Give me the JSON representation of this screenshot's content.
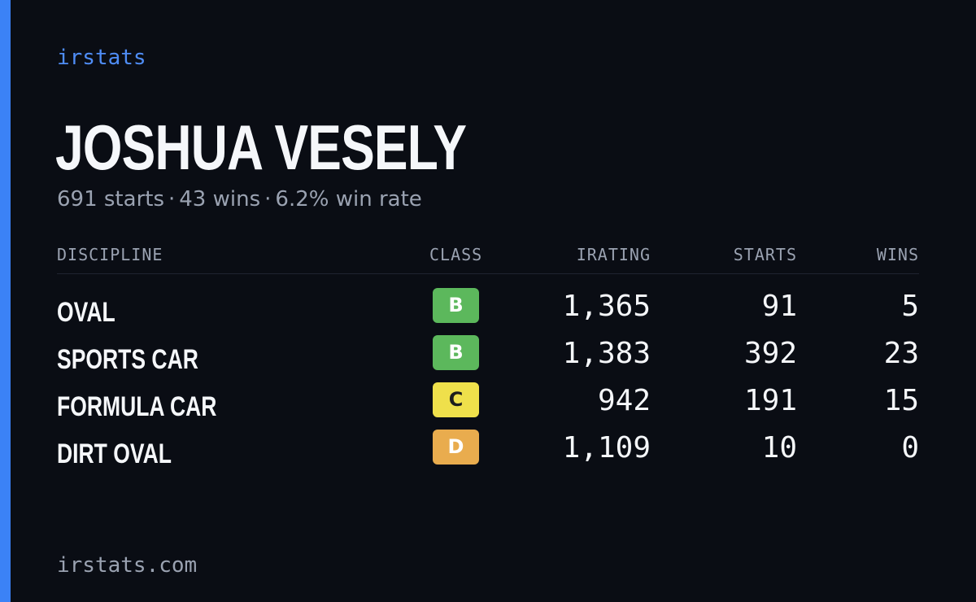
{
  "brand": "irstats",
  "driver": {
    "name": "JOSHUA VESELY",
    "starts_text": "691 starts",
    "wins_text": "43 wins",
    "win_rate_text": "6.2% win rate",
    "separator": "·"
  },
  "table": {
    "headers": {
      "discipline": "DISCIPLINE",
      "class": "CLASS",
      "irating": "IRATING",
      "starts": "STARTS",
      "wins": "WINS"
    },
    "rows": [
      {
        "discipline": "OVAL",
        "class": "B",
        "class_color": "#5cb85c",
        "class_text_color": "#ffffff",
        "irating": "1,365",
        "starts": "91",
        "wins": "5"
      },
      {
        "discipline": "SPORTS CAR",
        "class": "B",
        "class_color": "#5cb85c",
        "class_text_color": "#ffffff",
        "irating": "1,383",
        "starts": "392",
        "wins": "23"
      },
      {
        "discipline": "FORMULA CAR",
        "class": "C",
        "class_color": "#efe04b",
        "class_text_color": "#1d1d1d",
        "irating": "942",
        "starts": "191",
        "wins": "15"
      },
      {
        "discipline": "DIRT OVAL",
        "class": "D",
        "class_color": "#e9ac4e",
        "class_text_color": "#ffffff",
        "irating": "1,109",
        "starts": "10",
        "wins": "0"
      }
    ]
  },
  "footer": {
    "url": "irstats.com"
  },
  "colors": {
    "background": "#0a0d14",
    "accent": "#3b82f6",
    "muted_text": "#9aa2b1"
  }
}
